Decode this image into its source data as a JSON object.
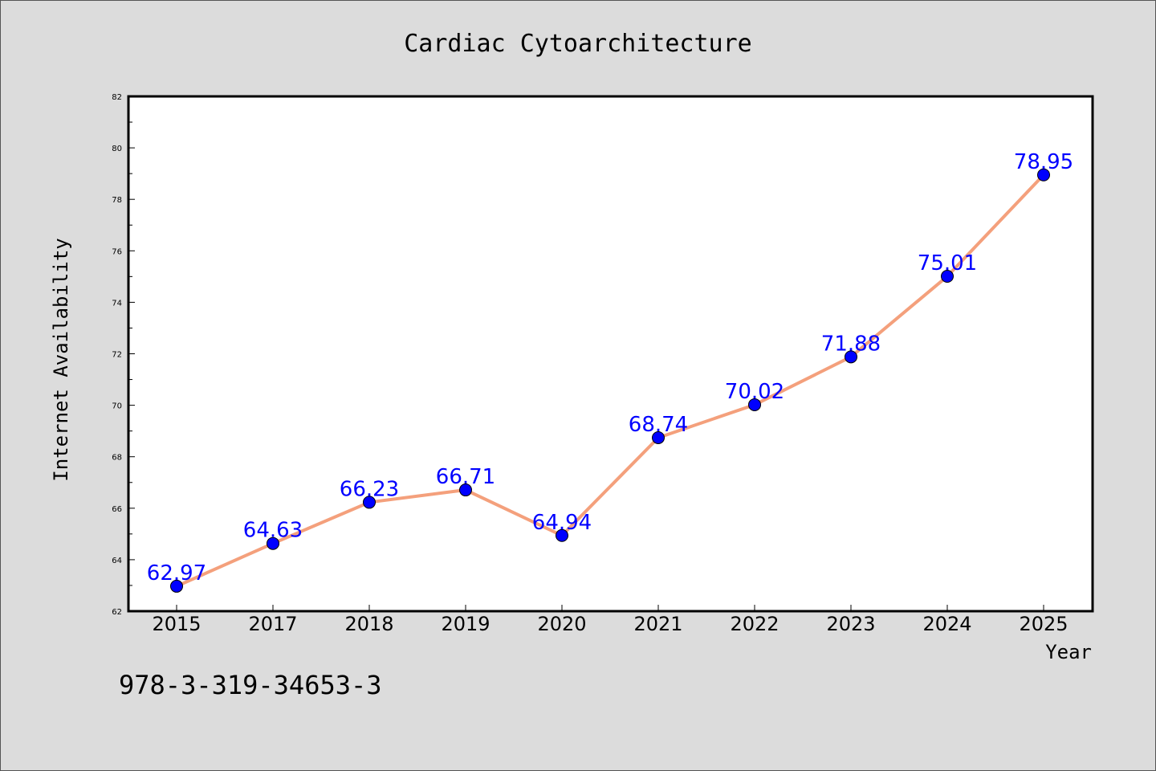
{
  "chart_data": {
    "type": "line",
    "title": "Cardiac Cytoarchitecture",
    "xlabel": "Year",
    "ylabel": "Internet Availability",
    "categories": [
      "2015",
      "2017",
      "2018",
      "2019",
      "2020",
      "2021",
      "2022",
      "2023",
      "2024",
      "2025"
    ],
    "series": [
      {
        "values": [
          62.97,
          64.63,
          66.23,
          66.71,
          64.94,
          68.74,
          70.02,
          71.88,
          75.01,
          78.95
        ],
        "line_color": "#f4a07c",
        "marker_color": "#0000ff"
      }
    ],
    "data_labels": [
      "62.97",
      "64.63",
      "66.23",
      "66.71",
      "64.94",
      "68.74",
      "70.02",
      "71.88",
      "75.01",
      "78.95"
    ],
    "data_label_color": "#0000ff",
    "ylim": [
      62,
      82
    ],
    "yticks": [
      "62",
      "64",
      "66",
      "68",
      "70",
      "72",
      "74",
      "76",
      "78",
      "80",
      "82"
    ],
    "grid": false,
    "legend": "none"
  },
  "footer": {
    "isbn": "978-3-319-34653-3"
  }
}
